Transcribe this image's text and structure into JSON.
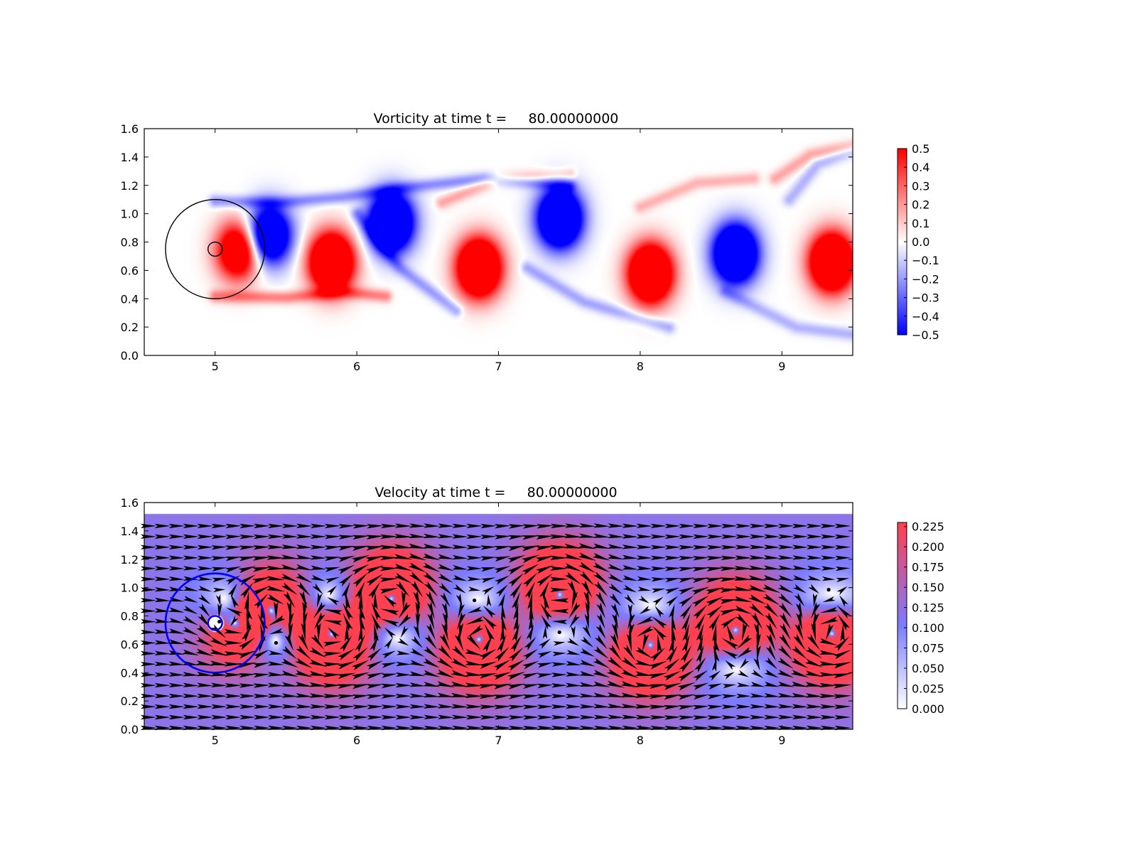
{
  "chart_data": [
    {
      "type": "heatmap",
      "title": "Vorticity at time t =     80.00000000",
      "xlabel": "",
      "ylabel": "",
      "xlim": [
        4.5,
        9.5
      ],
      "ylim": [
        0.0,
        1.6
      ],
      "x_ticks": [
        "5",
        "6",
        "7",
        "8",
        "9"
      ],
      "y_ticks": [
        "0.0",
        "0.2",
        "0.4",
        "0.6",
        "0.8",
        "1.0",
        "1.2",
        "1.4",
        "1.6"
      ],
      "grid": false,
      "colormap": "bwr",
      "colors": {
        "positive": "#ff0000",
        "zero": "#ffffff",
        "negative": "#0000ff",
        "outline": "#000000"
      },
      "colorbar": {
        "range": [
          -0.5,
          0.5
        ],
        "ticks": [
          "0.5",
          "0.4",
          "0.3",
          "0.2",
          "0.1",
          "0.0",
          "−0.1",
          "−0.2",
          "−0.3",
          "−0.4",
          "−0.5"
        ]
      },
      "vortices": [
        {
          "x": 5.82,
          "y": 0.66,
          "strength": 1.0
        },
        {
          "x": 5.38,
          "y": 0.85,
          "strength": -0.8
        },
        {
          "x": 5.16,
          "y": 0.74,
          "strength": 0.7
        },
        {
          "x": 6.24,
          "y": 0.94,
          "strength": -1.0
        },
        {
          "x": 6.86,
          "y": 0.62,
          "strength": 1.0
        },
        {
          "x": 7.43,
          "y": 0.97,
          "strength": -1.0
        },
        {
          "x": 8.07,
          "y": 0.58,
          "strength": 1.0
        },
        {
          "x": 8.67,
          "y": 0.72,
          "strength": -1.0
        },
        {
          "x": 9.35,
          "y": 0.66,
          "strength": 1.0
        }
      ],
      "shear_layers": [
        {
          "points": [
            [
              5.0,
              1.09
            ],
            [
              5.45,
              1.08
            ],
            [
              5.9,
              1.12
            ],
            [
              6.3,
              1.18
            ],
            [
              6.9,
              1.25
            ],
            [
              7.5,
              1.2
            ]
          ],
          "strength": -0.45
        },
        {
          "points": [
            [
              5.0,
              0.42
            ],
            [
              5.5,
              0.41
            ],
            [
              5.9,
              0.45
            ],
            [
              6.2,
              0.42
            ]
          ],
          "strength": 0.5
        },
        {
          "points": [
            [
              6.0,
              1.0
            ],
            [
              6.3,
              0.62
            ],
            [
              6.7,
              0.32
            ]
          ],
          "strength": -0.4
        },
        {
          "points": [
            [
              6.6,
              1.08
            ],
            [
              7.0,
              1.25
            ],
            [
              7.5,
              1.28
            ]
          ],
          "strength": 0.35
        },
        {
          "points": [
            [
              7.2,
              0.62
            ],
            [
              7.6,
              0.38
            ],
            [
              8.2,
              0.2
            ]
          ],
          "strength": -0.35
        },
        {
          "points": [
            [
              8.0,
              1.05
            ],
            [
              8.4,
              1.22
            ],
            [
              8.8,
              1.25
            ]
          ],
          "strength": 0.3
        },
        {
          "points": [
            [
              8.6,
              0.45
            ],
            [
              9.1,
              0.2
            ],
            [
              9.5,
              0.15
            ]
          ],
          "strength": -0.3
        },
        {
          "points": [
            [
              8.95,
              1.25
            ],
            [
              9.2,
              1.42
            ],
            [
              9.5,
              1.48
            ]
          ],
          "strength": 0.35
        },
        {
          "points": [
            [
              9.05,
              1.1
            ],
            [
              9.25,
              1.35
            ],
            [
              9.5,
              1.45
            ]
          ],
          "strength": -0.3
        }
      ],
      "cylinder": {
        "x": 5.0,
        "y": 0.75,
        "r": 0.05
      },
      "domain_circle": {
        "x": 5.0,
        "y": 0.75,
        "r": 0.35
      }
    },
    {
      "type": "heatmap",
      "title": "Velocity at time t =     80.00000000",
      "xlabel": "",
      "ylabel": "",
      "xlim": [
        4.5,
        9.5
      ],
      "ylim": [
        0.0,
        1.6
      ],
      "field_ylim": [
        0.0,
        1.52
      ],
      "x_ticks": [
        "5",
        "6",
        "7",
        "8",
        "9"
      ],
      "y_ticks": [
        "0.0",
        "0.2",
        "0.4",
        "0.6",
        "0.8",
        "1.0",
        "1.2",
        "1.4",
        "1.6"
      ],
      "grid": false,
      "colors": {
        "low": "#ffffff",
        "mid": "#7c7cff",
        "high": "#ff4050",
        "arrows": "#000000",
        "circle": "#0000ee"
      },
      "colorbar": {
        "range": [
          0.0,
          0.23
        ],
        "ticks": [
          "0.225",
          "0.200",
          "0.175",
          "0.150",
          "0.125",
          "0.100",
          "0.075",
          "0.050",
          "0.025",
          "0.000"
        ]
      },
      "quiver_grid": {
        "x_start": 4.53,
        "x_step": 0.1,
        "nx": 50,
        "y_start": 0.01,
        "y_step": 0.075,
        "ny": 20
      },
      "cylinder": {
        "x": 5.0,
        "y": 0.75,
        "r": 0.05
      },
      "domain_circle": {
        "x": 5.0,
        "y": 0.75,
        "r": 0.35
      }
    }
  ]
}
